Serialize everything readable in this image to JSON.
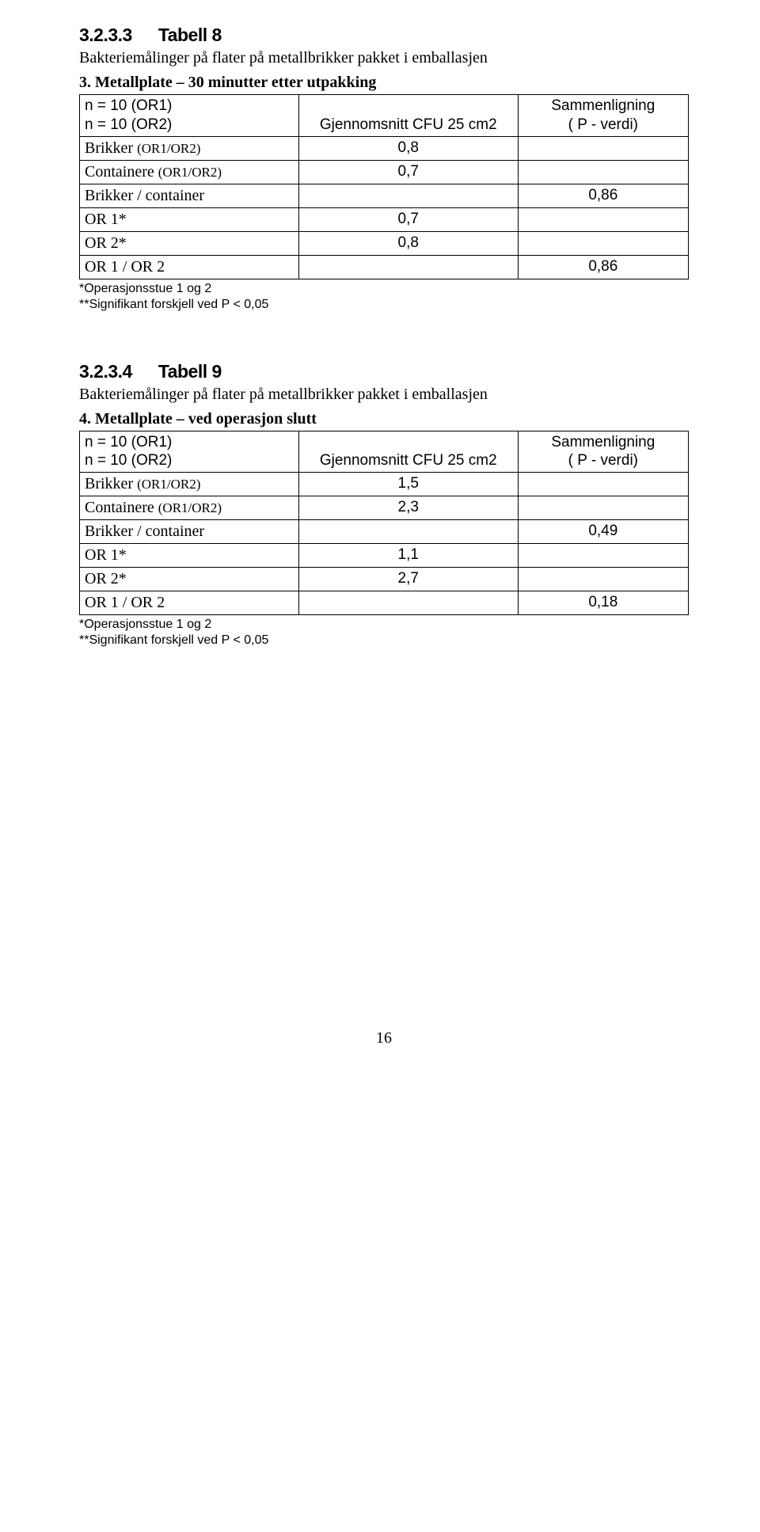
{
  "section1": {
    "num": "3.2.3.3",
    "title": "Tabell 8",
    "subtitle": "Bakteriemålinger på flater på metallbrikker pakket i emballasjen",
    "caption": "3. Metallplate – 30 minutter etter utpakking",
    "table": {
      "hdr_r1_c1": "n = 10 (OR1)",
      "hdr_r1_c3": "Sammenligning",
      "hdr_r2_c1": "n = 10 (OR2)",
      "hdr_r2_c2": "Gjennomsnitt CFU 25 cm2",
      "hdr_r2_c3": "( P - verdi)",
      "rows": [
        {
          "c1": "Brikker (OR1/OR2)",
          "c2": "0,8",
          "c3": ""
        },
        {
          "c1": "Containere (OR1/OR2)",
          "c2": "0,7",
          "c3": ""
        },
        {
          "c1": "Brikker / container",
          "c2": "",
          "c3": "0,86"
        },
        {
          "c1": "OR 1*",
          "c2": "0,7",
          "c3": ""
        },
        {
          "c1": "OR 2*",
          "c2": "0,8",
          "c3": ""
        },
        {
          "c1": "OR 1 / OR 2",
          "c2": "",
          "c3": "0,86"
        }
      ]
    },
    "foot1": "*Operasjonsstue 1 og 2",
    "foot2": "**Signifikant forskjell ved P < 0,05"
  },
  "section2": {
    "num": "3.2.3.4",
    "title": "Tabell 9",
    "subtitle": "Bakteriemålinger på flater på metallbrikker pakket i emballasjen",
    "caption": "4. Metallplate – ved operasjon slutt",
    "table": {
      "hdr_r1_c1": "n = 10 (OR1)",
      "hdr_r1_c3": "Sammenligning",
      "hdr_r2_c1": "n = 10 (OR2)",
      "hdr_r2_c2": "Gjennomsnitt CFU 25 cm2",
      "hdr_r2_c3": "( P - verdi)",
      "rows": [
        {
          "c1": "Brikker (OR1/OR2)",
          "c2": "1,5",
          "c3": ""
        },
        {
          "c1": "Containere (OR1/OR2)",
          "c2": "2,3",
          "c3": ""
        },
        {
          "c1": "Brikker / container",
          "c2": "",
          "c3": "0,49"
        },
        {
          "c1": "OR 1*",
          "c2": "1,1",
          "c3": ""
        },
        {
          "c1": "OR 2*",
          "c2": "2,7",
          "c3": ""
        },
        {
          "c1": "OR 1 / OR 2",
          "c2": "",
          "c3": "0,18"
        }
      ]
    },
    "foot1": "*Operasjonsstue 1 og 2",
    "foot2": "**Signifikant forskjell ved P < 0,05"
  },
  "pageNumber": "16"
}
